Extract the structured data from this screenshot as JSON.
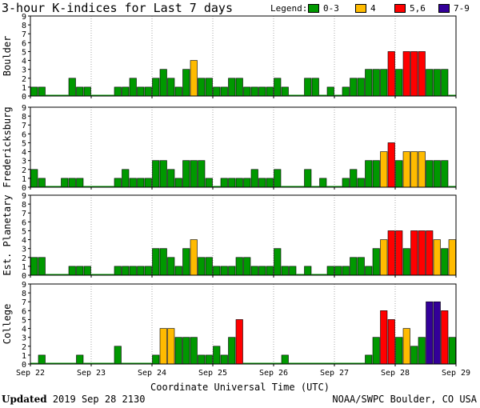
{
  "title": "3-hour K-indices for Last 7 days",
  "legend": {
    "label": "Legend:",
    "items": [
      {
        "label": "0-3",
        "color": "#009900"
      },
      {
        "label": "4",
        "color": "#ffbb00"
      },
      {
        "label": "5,6",
        "color": "#ff0000"
      },
      {
        "label": "7-9",
        "color": "#330099"
      }
    ]
  },
  "colors": {
    "low": "#009900",
    "moderate": "#ffbb00",
    "active": "#ff0000",
    "severe": "#330099"
  },
  "chart_data": {
    "type": "bar",
    "ylim": [
      0,
      9
    ],
    "y_ticks": [
      "0",
      "1",
      "2",
      "3",
      "4",
      "5",
      "6",
      "7",
      "8",
      "9"
    ],
    "x_tick_labels": [
      "Sep 22",
      "Sep 23",
      "Sep 24",
      "Sep 25",
      "Sep 26",
      "Sep 27",
      "Sep 28",
      "Sep 29"
    ],
    "xlabel": "Coordinate Universal Time (UTC)",
    "intervals_per_day": 8,
    "panels": [
      {
        "ylabel": "Boulder",
        "values": [
          1,
          1,
          0,
          0,
          0,
          2,
          1,
          1,
          0,
          0,
          0,
          1,
          1,
          2,
          1,
          1,
          2,
          3,
          2,
          1,
          3,
          4,
          2,
          2,
          1,
          1,
          2,
          2,
          1,
          1,
          1,
          1,
          2,
          1,
          0,
          0,
          2,
          2,
          0,
          1,
          0,
          1,
          2,
          2,
          3,
          3,
          3,
          5,
          3,
          5,
          5,
          5,
          3,
          3,
          3,
          0
        ]
      },
      {
        "ylabel": "Fredericksburg",
        "values": [
          2,
          1,
          0,
          0,
          1,
          1,
          1,
          0,
          0,
          0,
          0,
          1,
          2,
          1,
          1,
          1,
          3,
          3,
          2,
          1,
          3,
          3,
          3,
          1,
          0,
          1,
          1,
          1,
          1,
          2,
          1,
          1,
          2,
          0,
          0,
          0,
          2,
          0,
          1,
          0,
          0,
          1,
          2,
          1,
          3,
          3,
          4,
          5,
          3,
          4,
          4,
          4,
          3,
          3,
          3,
          0
        ]
      },
      {
        "ylabel": "Est. Planetary",
        "values": [
          2,
          2,
          0,
          0,
          0,
          1,
          1,
          1,
          0,
          0,
          0,
          1,
          1,
          1,
          1,
          1,
          3,
          3,
          2,
          1,
          3,
          4,
          2,
          2,
          1,
          1,
          1,
          2,
          2,
          1,
          1,
          1,
          3,
          1,
          1,
          0,
          1,
          0,
          0,
          1,
          1,
          1,
          2,
          2,
          1,
          3,
          4,
          5,
          5,
          3,
          5,
          5,
          5,
          4,
          3,
          4
        ]
      },
      {
        "ylabel": "College",
        "values": [
          0,
          1,
          0,
          0,
          0,
          0,
          1,
          0,
          0,
          0,
          0,
          2,
          0,
          0,
          0,
          0,
          1,
          4,
          4,
          3,
          3,
          3,
          1,
          1,
          2,
          1,
          3,
          5,
          0,
          0,
          0,
          0,
          0,
          1,
          0,
          0,
          0,
          0,
          0,
          0,
          0,
          0,
          0,
          0,
          1,
          3,
          6,
          5,
          3,
          4,
          2,
          3,
          7,
          7,
          6,
          3
        ]
      }
    ]
  },
  "footer": {
    "updated_label": "Updated",
    "updated_value": " 2019 Sep 28 2130",
    "credit": "NOAA/SWPC Boulder, CO USA"
  }
}
